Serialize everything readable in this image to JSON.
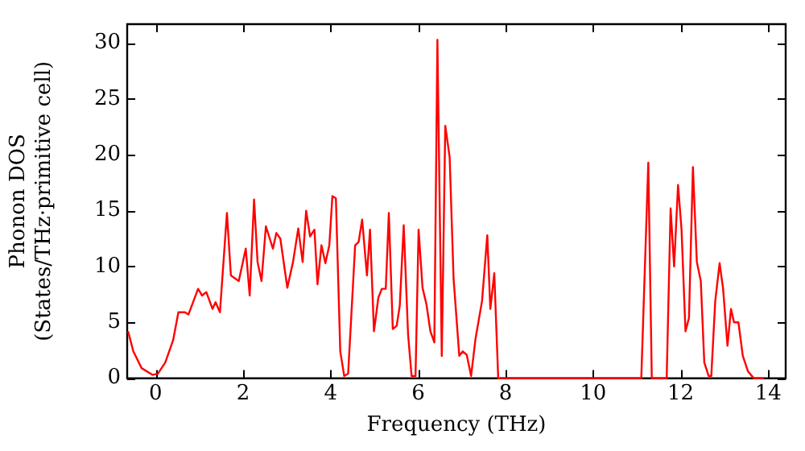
{
  "chart_data": {
    "type": "line",
    "xlabel": "Frequency (THz)",
    "ylabel": "Phonon DOS\n(States/THz·primitive cell)",
    "xlim": [
      -0.65,
      14.4
    ],
    "ylim": [
      0,
      31.7
    ],
    "xticks": [
      0,
      2,
      4,
      6,
      8,
      10,
      12,
      14
    ],
    "yticks": [
      0,
      5,
      10,
      15,
      20,
      25,
      30
    ],
    "grid": false,
    "legend": false,
    "marker": "none",
    "line_style": "solid",
    "series": [
      {
        "color": "#ff0000",
        "x": [
          -0.63,
          -0.51,
          -0.32,
          -0.07,
          0.05,
          0.22,
          0.4,
          0.52,
          0.67,
          0.75,
          0.97,
          1.06,
          1.16,
          1.3,
          1.37,
          1.47,
          1.63,
          1.72,
          1.9,
          2.06,
          2.15,
          2.25,
          2.33,
          2.42,
          2.52,
          2.68,
          2.76,
          2.85,
          3.01,
          3.14,
          3.26,
          3.36,
          3.44,
          3.53,
          3.63,
          3.7,
          3.79,
          3.88,
          3.97,
          4.04,
          4.12,
          4.22,
          4.31,
          4.4,
          4.56,
          4.64,
          4.72,
          4.83,
          4.9,
          4.99,
          5.09,
          5.17,
          5.26,
          5.33,
          5.42,
          5.51,
          5.58,
          5.67,
          5.77,
          5.85,
          5.94,
          6.01,
          6.1,
          6.19,
          6.28,
          6.37,
          6.44,
          6.54,
          6.62,
          6.72,
          6.81,
          6.94,
          7.02,
          7.11,
          7.21,
          7.31,
          7.46,
          7.58,
          7.65,
          7.74,
          7.83,
          11.1,
          11.26,
          11.34,
          11.68,
          11.77,
          11.85,
          11.94,
          12.02,
          12.11,
          12.19,
          12.28,
          12.37,
          12.46,
          12.54,
          12.64,
          12.7,
          12.79,
          12.89,
          12.97,
          13.07,
          13.15,
          13.22,
          13.32,
          13.42,
          13.54,
          13.67,
          13.9
        ],
        "values": [
          4.2,
          2.4,
          0.9,
          0.3,
          0.4,
          1.4,
          3.4,
          5.9,
          5.9,
          5.7,
          8.0,
          7.4,
          7.7,
          6.2,
          6.8,
          5.9,
          14.8,
          9.2,
          8.7,
          11.6,
          7.4,
          16.0,
          10.4,
          8.7,
          13.6,
          11.6,
          13.0,
          12.5,
          8.1,
          10.4,
          13.4,
          10.4,
          15.0,
          12.7,
          13.3,
          8.4,
          11.9,
          10.3,
          11.9,
          16.3,
          16.1,
          2.4,
          0.2,
          0.4,
          11.9,
          12.2,
          14.2,
          9.2,
          13.3,
          4.2,
          7.2,
          8.0,
          8.0,
          14.8,
          4.4,
          4.7,
          6.5,
          13.7,
          3.9,
          0.2,
          0.2,
          13.3,
          8.1,
          6.6,
          4.2,
          3.2,
          30.3,
          2.0,
          22.6,
          19.8,
          8.9,
          2.0,
          2.4,
          2.1,
          0.2,
          3.5,
          6.9,
          12.8,
          6.2,
          9.4,
          0,
          0,
          19.3,
          0,
          0,
          15.2,
          10.0,
          17.3,
          13.3,
          4.2,
          5.4,
          18.9,
          10.4,
          8.7,
          1.4,
          0.2,
          0.2,
          6.9,
          10.3,
          8.0,
          2.9,
          6.2,
          5.0,
          5.0,
          2.0,
          0.6,
          0,
          0
        ]
      }
    ]
  }
}
